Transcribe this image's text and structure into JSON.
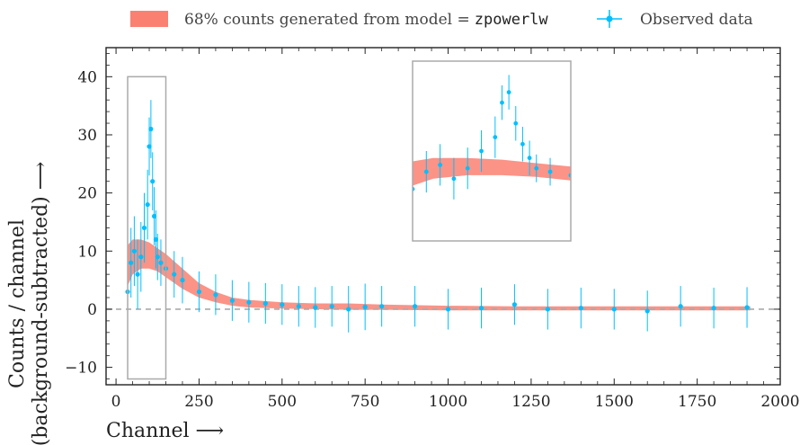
{
  "chart_data": {
    "type": "scatter",
    "xlabel": "Channel ⟶",
    "ylabel_line1": "Counts / channel",
    "ylabel_line2": "(background-subtracted) ⟶",
    "xlim": [
      -30,
      2000
    ],
    "ylim": [
      -13,
      45
    ],
    "xticks": [
      0,
      250,
      500,
      750,
      1000,
      1250,
      1500,
      1750,
      2000
    ],
    "yticks": [
      -10,
      0,
      10,
      20,
      30,
      40
    ],
    "grid": false,
    "legend_placement": "top, outside plot",
    "legend": [
      {
        "label_prefix": "68% counts generated from model =",
        "label_model": "zpowerlw",
        "color": "#fa8072",
        "kind": "band"
      },
      {
        "label": "Observed data",
        "color": "#00bfff",
        "kind": "errorbar"
      }
    ],
    "reference_line": {
      "y": 0,
      "style": "dashed",
      "color": "#aaaaaa"
    },
    "highlight_box": {
      "x": [
        35,
        150
      ],
      "y": [
        -12,
        40
      ]
    },
    "inset": {
      "x_range": [
        35,
        150
      ],
      "y_range": [
        -12,
        40
      ],
      "note": "zoomed view of highlighted region"
    },
    "series": [
      {
        "name": "Observed data",
        "color": "#00bfff",
        "x": [
          35,
          45,
          55,
          65,
          75,
          85,
          95,
          100,
          105,
          110,
          115,
          120,
          125,
          135,
          150,
          175,
          200,
          250,
          300,
          350,
          400,
          450,
          500,
          550,
          600,
          650,
          700,
          750,
          800,
          900,
          1000,
          1100,
          1200,
          1300,
          1400,
          1500,
          1600,
          1700,
          1800,
          1900
        ],
        "y": [
          3,
          8,
          10,
          6,
          9,
          14,
          18,
          28,
          31,
          22,
          16,
          12,
          9,
          8,
          7,
          6,
          5,
          3,
          2.5,
          1.5,
          1.2,
          1.0,
          0.8,
          0.5,
          0.3,
          0.5,
          0.0,
          0.4,
          0.5,
          0.5,
          0.0,
          0.2,
          0.8,
          0.0,
          0.2,
          0.0,
          -0.3,
          0.5,
          0.2,
          0.3
        ],
        "yerr": [
          6,
          6,
          6,
          6,
          6,
          6,
          6,
          5,
          5,
          5,
          5,
          5,
          4,
          4,
          4,
          4,
          4,
          3.5,
          3.5,
          3.5,
          3.5,
          3.5,
          3.5,
          3.5,
          3.5,
          3.5,
          4,
          4,
          3.5,
          3.5,
          3.5,
          3.5,
          3.5,
          3.5,
          3.5,
          3.5,
          3.5,
          3.5,
          3.5,
          3.5
        ]
      },
      {
        "name": "68% counts generated from model",
        "color": "#fa8072",
        "x": [
          35,
          50,
          75,
          100,
          125,
          150,
          200,
          250,
          300,
          350,
          400,
          500,
          600,
          700,
          800,
          1000,
          1200,
          1400,
          1600,
          1800,
          1910
        ],
        "lower": [
          4,
          6,
          7,
          7,
          6.5,
          5.5,
          3.5,
          2,
          1.2,
          0.6,
          0.3,
          0.1,
          0.0,
          -0.1,
          -0.1,
          -0.2,
          -0.2,
          -0.2,
          -0.2,
          -0.2,
          -0.2
        ],
        "upper": [
          11,
          12,
          12,
          11.5,
          10.5,
          9.5,
          7,
          4.5,
          3,
          2,
          1.6,
          1.2,
          1.0,
          1.0,
          0.8,
          0.6,
          0.5,
          0.5,
          0.5,
          0.5,
          0.5
        ]
      }
    ]
  }
}
